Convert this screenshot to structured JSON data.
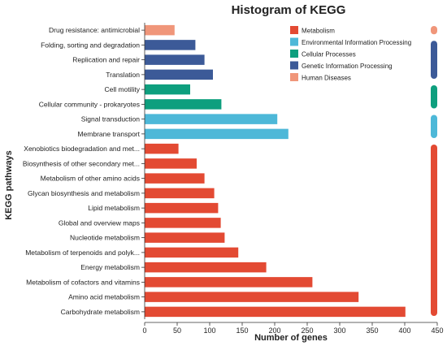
{
  "chart_data": {
    "type": "bar",
    "orientation": "horizontal",
    "title": "Histogram of KEGG",
    "xlabel": "Number of genes",
    "ylabel": "KEGG pathways",
    "xlim": [
      0,
      450
    ],
    "xticks": [
      "0",
      "50",
      "100",
      "150",
      "200",
      "250",
      "300",
      "350",
      "400",
      "450"
    ],
    "grid": false,
    "legend_position": "top-right",
    "groups": [
      {
        "name": "Metabolism",
        "color": "#e34a33"
      },
      {
        "name": "Environmental Information Processing",
        "color": "#4db8d8"
      },
      {
        "name": "Cellular Processes",
        "color": "#0e9f7e"
      },
      {
        "name": "Genetic Information Processing",
        "color": "#3c5a98"
      },
      {
        "name": "Human Diseases",
        "color": "#f0967a"
      }
    ],
    "categories": [
      "Drug resistance: antimicrobial",
      "Folding, sorting and degradation",
      "Replication and repair",
      "Translation",
      "Cell motility",
      "Cellular community - prokaryotes",
      "Signal transduction",
      "Membrane transport",
      "Xenobiotics biodegradation and met...",
      "Biosynthesis of other secondary met...",
      "Metabolism of other amino acids",
      "Glycan biosynthesis and metabolism",
      "Lipid metabolism",
      "Global and overview maps",
      "Nucleotide metabolism",
      "Metabolism of terpenoids and polyk...",
      "Energy metabolism",
      "Metabolism of cofactors and vitamins",
      "Amino acid metabolism",
      "Carbohydrate metabolism"
    ],
    "values": [
      46,
      78,
      92,
      105,
      70,
      118,
      204,
      221,
      52,
      80,
      92,
      107,
      113,
      117,
      123,
      144,
      187,
      258,
      329,
      401
    ],
    "category_group": [
      "Human Diseases",
      "Genetic Information Processing",
      "Genetic Information Processing",
      "Genetic Information Processing",
      "Cellular Processes",
      "Cellular Processes",
      "Environmental Information Processing",
      "Environmental Information Processing",
      "Metabolism",
      "Metabolism",
      "Metabolism",
      "Metabolism",
      "Metabolism",
      "Metabolism",
      "Metabolism",
      "Metabolism",
      "Metabolism",
      "Metabolism",
      "Metabolism",
      "Metabolism"
    ]
  }
}
